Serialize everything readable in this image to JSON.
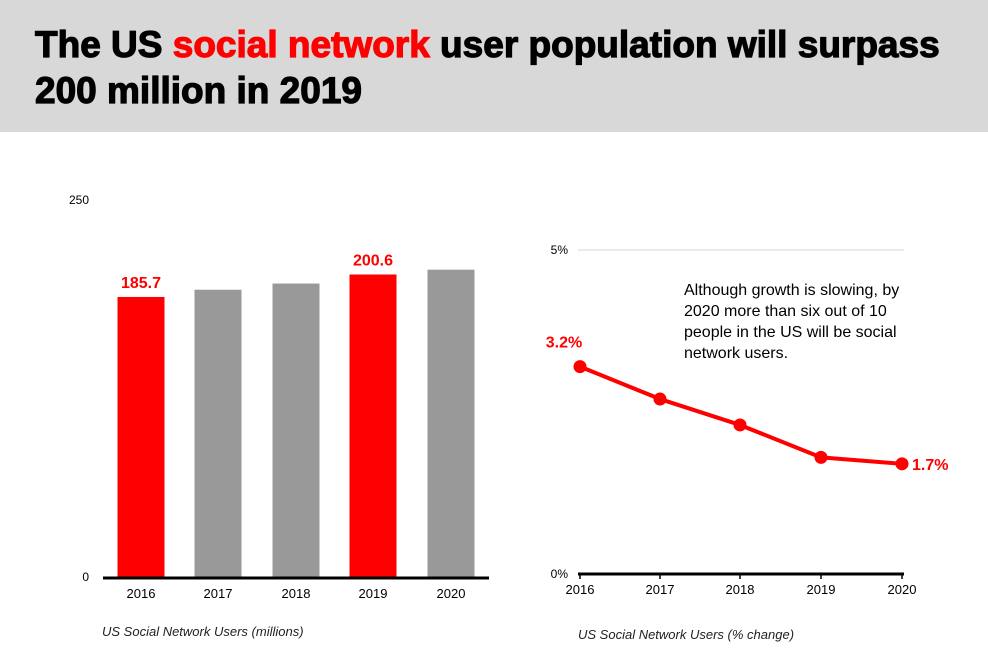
{
  "title": {
    "before": "The US ",
    "highlight": "social network",
    "after": " user population will surpass 200 million in 2019"
  },
  "colors": {
    "accent": "#ff0000",
    "neutral_bar": "#999999",
    "header_bg": "#d8d8d8",
    "axis": "#000000"
  },
  "chart_data": [
    {
      "type": "bar",
      "categories": [
        "2016",
        "2017",
        "2018",
        "2019",
        "2020"
      ],
      "values": [
        185.7,
        190.5,
        194.6,
        200.6,
        203.8
      ],
      "highlighted": [
        true,
        false,
        false,
        true,
        false
      ],
      "data_labels": [
        "185.7",
        "",
        "",
        "200.6",
        ""
      ],
      "ylim": [
        0,
        250
      ],
      "ytick_labels": [
        "0",
        "250"
      ],
      "xlabel": "US Social Network Users (millions)",
      "ylabel": "",
      "grid": false
    },
    {
      "type": "line",
      "x": [
        "2016",
        "2017",
        "2018",
        "2019",
        "2020"
      ],
      "values": [
        3.2,
        2.7,
        2.3,
        1.8,
        1.7
      ],
      "data_labels": [
        "3.2%",
        "",
        "",
        "",
        "1.7%"
      ],
      "ylim": [
        0,
        5
      ],
      "ytick_labels": [
        "0%",
        "5%"
      ],
      "xlabel": "US Social Network Users (% change)",
      "ylabel": "",
      "annotation": "Although growth is slowing, by 2020 more than six out of 10 people in the US will be social network users.",
      "grid": true
    }
  ]
}
